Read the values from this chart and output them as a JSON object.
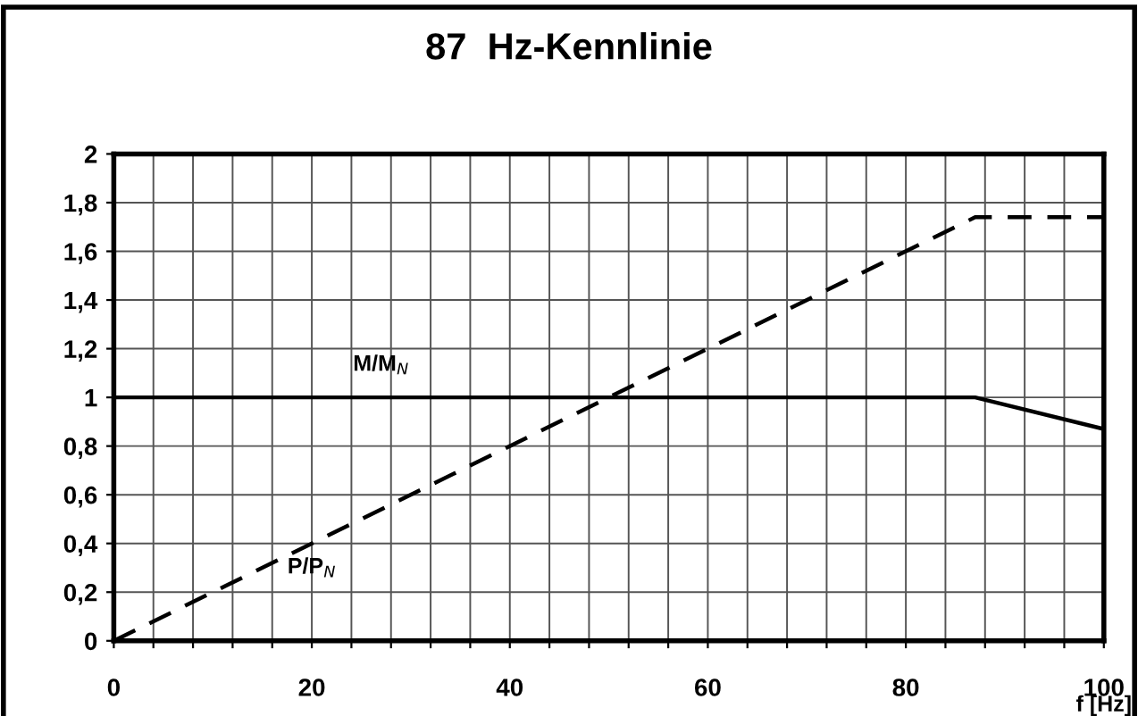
{
  "chart_data": {
    "type": "line",
    "title": "87  Hz-Kennlinie",
    "xlabel": "f [Hz]",
    "series": [
      {
        "name": "M/M$_{N}$",
        "color": "#000000",
        "line_style": "solid",
        "x": [
          0,
          87,
          100
        ],
        "values": [
          1,
          1,
          0.87
        ]
      },
      {
        "name": "P/P$_{N}$",
        "color": "#000000",
        "line_style": "dashed",
        "x": [
          0,
          87,
          100
        ],
        "values": [
          0,
          1.74,
          1.74
        ]
      }
    ],
    "xlim": [
      0,
      100
    ],
    "ylim": [
      0,
      2
    ],
    "xticks": [
      0,
      {
        "value": 4,
        "label": null
      },
      {
        "value": 8,
        "label": null
      },
      {
        "value": 12,
        "label": null
      },
      {
        "value": 16,
        "label": null
      },
      20,
      {
        "value": 24,
        "label": null
      },
      {
        "value": 28,
        "label": null
      },
      {
        "value": 32,
        "label": null
      },
      {
        "value": 36,
        "label": null
      },
      40,
      {
        "value": 44,
        "label": null
      },
      {
        "value": 48,
        "label": null
      },
      {
        "value": 52,
        "label": null
      },
      {
        "value": 56,
        "label": null
      },
      60,
      {
        "value": 64,
        "label": null
      },
      {
        "value": 68,
        "label": null
      },
      {
        "value": 72,
        "label": null
      },
      {
        "value": 76,
        "label": null
      },
      80,
      {
        "value": 84,
        "label": null
      },
      {
        "value": 88,
        "label": null
      },
      {
        "value": 92,
        "label": null
      },
      {
        "value": 96,
        "label": null
      },
      100
    ],
    "yticks": [
      0,
      {
        "value": 0.2,
        "label": "0,2"
      },
      {
        "value": 0.4,
        "label": "0,4"
      },
      {
        "value": 0.6,
        "label": "0,6"
      },
      {
        "value": 0.8,
        "label": "0,8"
      },
      1,
      {
        "value": 1.2,
        "label": "1,2"
      },
      {
        "value": 1.4,
        "label": "1,4"
      },
      {
        "value": 1.6,
        "label": "1,6"
      },
      {
        "value": 1.8,
        "label": "1,8"
      },
      2
    ],
    "grid": true,
    "legend": false,
    "marker": "none"
  }
}
